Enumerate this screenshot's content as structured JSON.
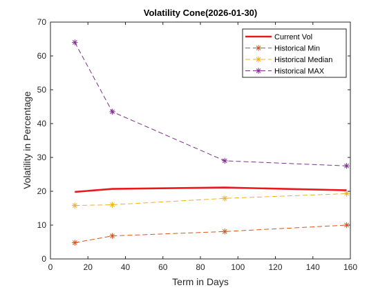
{
  "chart_data": {
    "type": "line",
    "title": "Volatility Cone(2026-01-30)",
    "xlabel": "Term in Days",
    "ylabel": "Volatility in Percentage",
    "xlim": [
      0,
      160
    ],
    "ylim": [
      0,
      70
    ],
    "xticks": [
      0,
      20,
      40,
      60,
      80,
      100,
      120,
      140,
      160
    ],
    "yticks": [
      0,
      10,
      20,
      30,
      40,
      50,
      60,
      70
    ],
    "grid": false,
    "legend_position": "top-right",
    "x": [
      13,
      33,
      93,
      158
    ],
    "series": [
      {
        "name": "Current Vol",
        "values": [
          19.8,
          20.7,
          21.1,
          20.3
        ],
        "color": "#E8191C",
        "style": "solid",
        "marker": "none"
      },
      {
        "name": "Historical Min",
        "values": [
          4.8,
          6.8,
          8.1,
          10.0
        ],
        "color": "#D95319",
        "style": "dashed",
        "marker": "asterisk"
      },
      {
        "name": "Historical Median",
        "values": [
          15.8,
          16.0,
          17.9,
          19.3
        ],
        "color": "#EDB120",
        "style": "dashed",
        "marker": "asterisk"
      },
      {
        "name": "Historical MAX",
        "values": [
          64.0,
          43.5,
          29.0,
          27.5
        ],
        "color": "#7E2F8E",
        "style": "dashed",
        "marker": "asterisk"
      }
    ]
  }
}
